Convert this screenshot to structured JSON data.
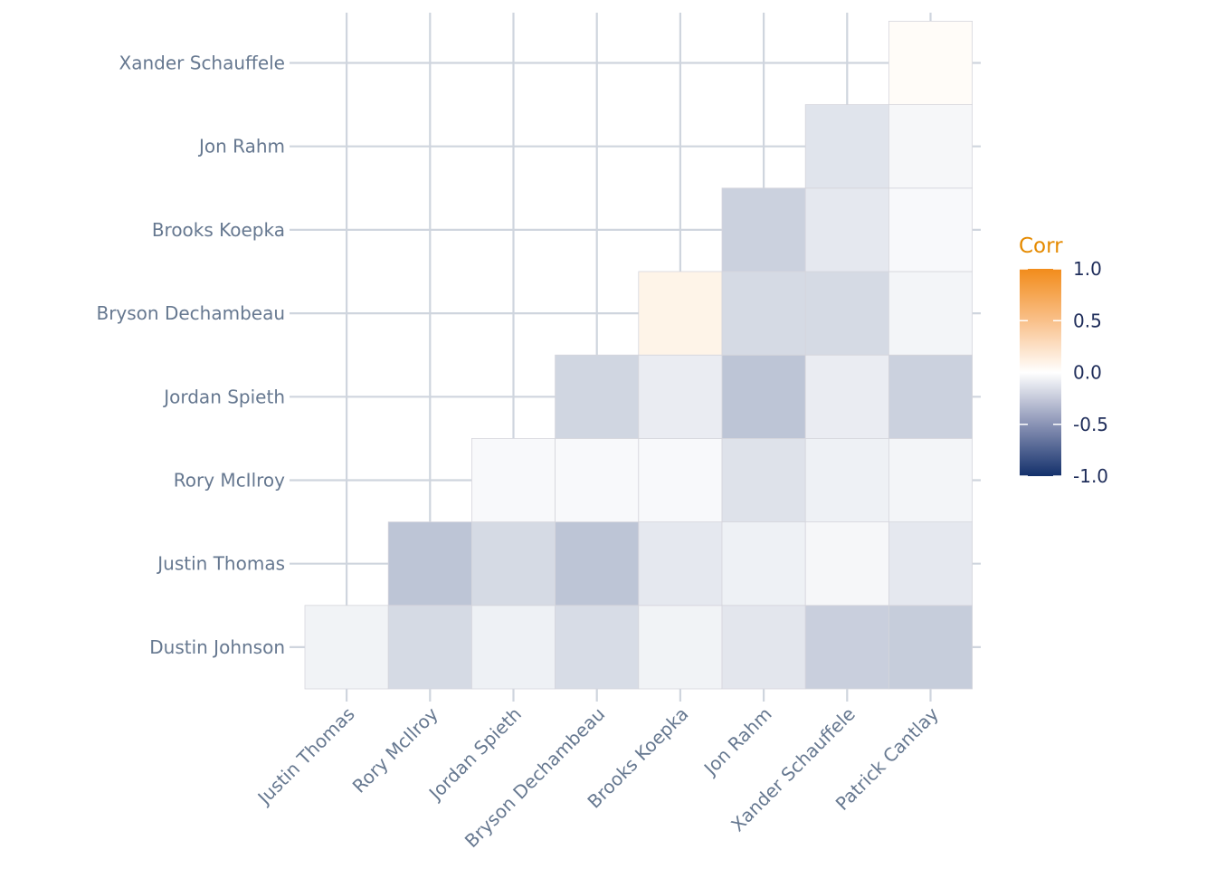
{
  "chart_data": {
    "type": "heatmap",
    "x_labels": [
      "Justin Thomas",
      "Rory McIlroy",
      "Jordan Spieth",
      "Bryson Dechambeau",
      "Brooks Koepka",
      "Jon Rahm",
      "Xander Schauffele",
      "Patrick Cantlay"
    ],
    "y_labels": [
      "Dustin Johnson",
      "Justin Thomas",
      "Rory McIlroy",
      "Jordan Spieth",
      "Bryson Dechambeau",
      "Brooks Koepka",
      "Jon Rahm",
      "Xander Schauffele"
    ],
    "cells": [
      {
        "row": "Dustin Johnson",
        "col": "Justin Thomas",
        "value": -0.06
      },
      {
        "row": "Dustin Johnson",
        "col": "Rory McIlroy",
        "value": -0.18
      },
      {
        "row": "Dustin Johnson",
        "col": "Jordan Spieth",
        "value": -0.07
      },
      {
        "row": "Dustin Johnson",
        "col": "Bryson Dechambeau",
        "value": -0.17
      },
      {
        "row": "Dustin Johnson",
        "col": "Brooks Koepka",
        "value": -0.06
      },
      {
        "row": "Dustin Johnson",
        "col": "Jon Rahm",
        "value": -0.12
      },
      {
        "row": "Dustin Johnson",
        "col": "Xander Schauffele",
        "value": -0.23
      },
      {
        "row": "Dustin Johnson",
        "col": "Patrick Cantlay",
        "value": -0.24
      },
      {
        "row": "Justin Thomas",
        "col": "Rory McIlroy",
        "value": -0.28
      },
      {
        "row": "Justin Thomas",
        "col": "Jordan Spieth",
        "value": -0.18
      },
      {
        "row": "Justin Thomas",
        "col": "Bryson Dechambeau",
        "value": -0.28
      },
      {
        "row": "Justin Thomas",
        "col": "Brooks Koepka",
        "value": -0.11
      },
      {
        "row": "Justin Thomas",
        "col": "Jon Rahm",
        "value": -0.07
      },
      {
        "row": "Justin Thomas",
        "col": "Xander Schauffele",
        "value": -0.04
      },
      {
        "row": "Justin Thomas",
        "col": "Patrick Cantlay",
        "value": -0.11
      },
      {
        "row": "Rory McIlroy",
        "col": "Jordan Spieth",
        "value": -0.03
      },
      {
        "row": "Rory McIlroy",
        "col": "Bryson Dechambeau",
        "value": -0.03
      },
      {
        "row": "Rory McIlroy",
        "col": "Brooks Koepka",
        "value": -0.03
      },
      {
        "row": "Rory McIlroy",
        "col": "Jon Rahm",
        "value": -0.14
      },
      {
        "row": "Rory McIlroy",
        "col": "Xander Schauffele",
        "value": -0.07
      },
      {
        "row": "Rory McIlroy",
        "col": "Patrick Cantlay",
        "value": -0.05
      },
      {
        "row": "Jordan Spieth",
        "col": "Bryson Dechambeau",
        "value": -0.2
      },
      {
        "row": "Jordan Spieth",
        "col": "Brooks Koepka",
        "value": -0.09
      },
      {
        "row": "Jordan Spieth",
        "col": "Jon Rahm",
        "value": -0.28
      },
      {
        "row": "Jordan Spieth",
        "col": "Xander Schauffele",
        "value": -0.09
      },
      {
        "row": "Jordan Spieth",
        "col": "Patrick Cantlay",
        "value": -0.22
      },
      {
        "row": "Bryson Dechambeau",
        "col": "Brooks Koepka",
        "value": 0.1
      },
      {
        "row": "Bryson Dechambeau",
        "col": "Jon Rahm",
        "value": -0.18
      },
      {
        "row": "Bryson Dechambeau",
        "col": "Xander Schauffele",
        "value": -0.18
      },
      {
        "row": "Bryson Dechambeau",
        "col": "Patrick Cantlay",
        "value": -0.05
      },
      {
        "row": "Brooks Koepka",
        "col": "Jon Rahm",
        "value": -0.22
      },
      {
        "row": "Brooks Koepka",
        "col": "Xander Schauffele",
        "value": -0.11
      },
      {
        "row": "Brooks Koepka",
        "col": "Patrick Cantlay",
        "value": -0.03
      },
      {
        "row": "Jon Rahm",
        "col": "Xander Schauffele",
        "value": -0.13
      },
      {
        "row": "Jon Rahm",
        "col": "Patrick Cantlay",
        "value": -0.04
      },
      {
        "row": "Xander Schauffele",
        "col": "Patrick Cantlay",
        "value": 0.03
      }
    ],
    "legend": {
      "title": "Corr",
      "ticks": [
        "1.0",
        "0.5",
        "0.0",
        "-0.5",
        "-1.0"
      ],
      "tick_values": [
        1,
        0.5,
        0,
        -0.5,
        -1
      ],
      "range": [
        -1,
        1
      ]
    },
    "colors": {
      "low": "#13306b",
      "mid": "#ffffff",
      "high": "#f28c1b",
      "cell_border": "#d5d5dc",
      "grid": "#cfd5de"
    },
    "grid": true
  }
}
